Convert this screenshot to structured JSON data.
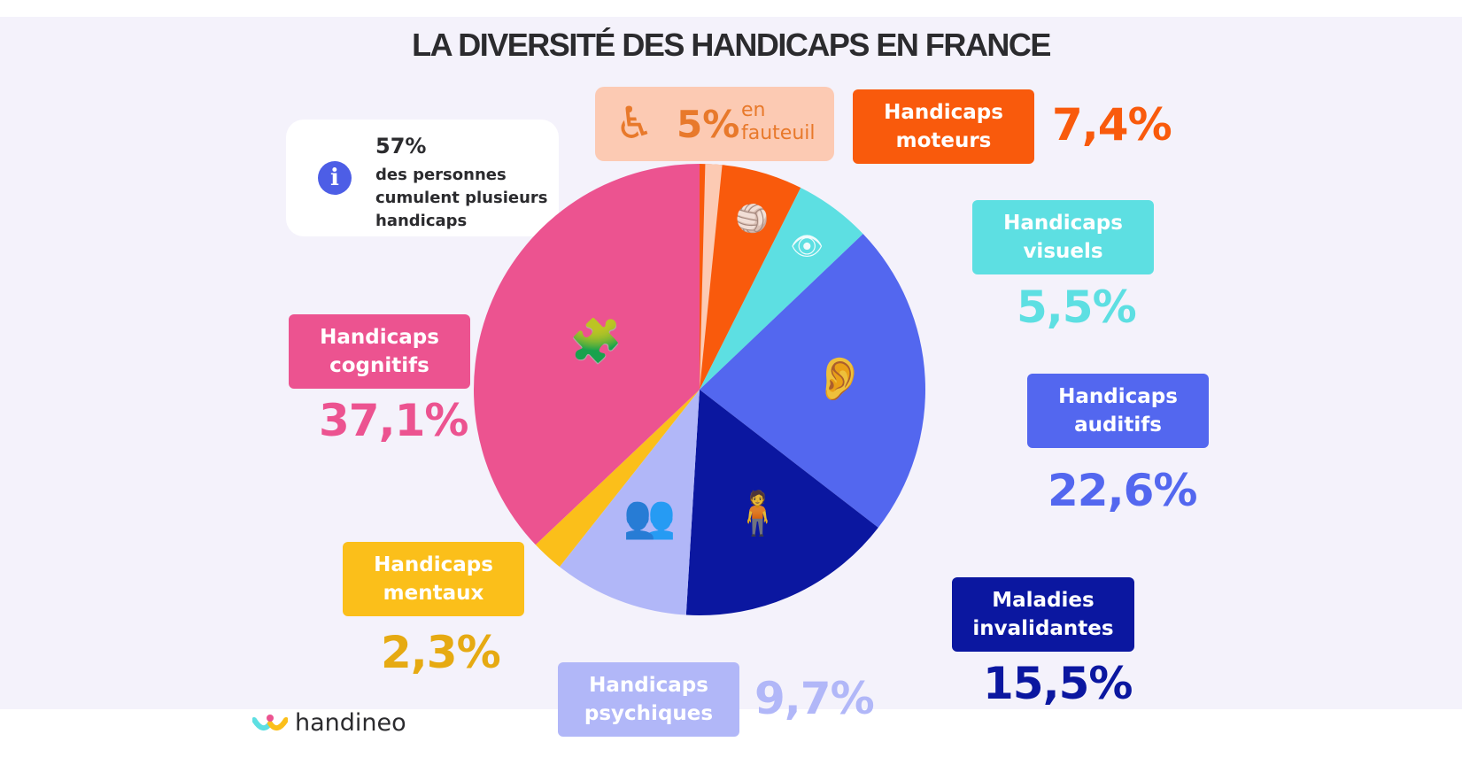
{
  "title": "LA DIVERSITÉ DES HANDICAPS EN FRANCE",
  "info": {
    "icon": "info-icon",
    "value": "57%",
    "text": "des personnes cumulent plusieurs handicaps"
  },
  "fauteuil": {
    "icon": "wheelchair-icon",
    "value": "5%",
    "label_line1": "en",
    "label_line2": "fauteuil",
    "color": "#fccab3",
    "text_color": "#e8792b"
  },
  "logo": {
    "name": "handineo"
  },
  "chart_data": {
    "type": "pie",
    "title": "LA DIVERSITÉ DES HANDICAPS EN FRANCE",
    "start": "top",
    "direction": "clockwise",
    "slices": [
      {
        "label_line1": "Handicaps",
        "label_line2": "moteurs",
        "value": 7.4,
        "display": "7,4%",
        "color": "#f95a0c",
        "icon": "volleyball-player-icon"
      },
      {
        "label_line1": "Handicaps",
        "label_line2": "visuels",
        "value": 5.5,
        "display": "5,5%",
        "color": "#5ddfe2",
        "icon": "eye-slash-icon"
      },
      {
        "label_line1": "Handicaps",
        "label_line2": "auditifs",
        "value": 22.6,
        "display": "22,6%",
        "color": "#5367ef",
        "icon": "ear-icon"
      },
      {
        "label_line1": "Maladies",
        "label_line2": "invalidantes",
        "value": 15.5,
        "display": "15,5%",
        "color": "#0b17a0",
        "icon": "back-pain-icon"
      },
      {
        "label_line1": "Handicaps",
        "label_line2": "psychiques",
        "value": 9.7,
        "display": "9,7%",
        "color": "#b1b7f8",
        "icon": "heads-icon"
      },
      {
        "label_line1": "Handicaps",
        "label_line2": "mentaux",
        "value": 2.3,
        "display": "2,3%",
        "color": "#fbbf1a",
        "icon": ""
      },
      {
        "label_line1": "Handicaps",
        "label_line2": "cognitifs",
        "value": 37.1,
        "display": "37,1%",
        "color": "#ec5390",
        "icon": "puzzle-head-icon"
      }
    ]
  }
}
